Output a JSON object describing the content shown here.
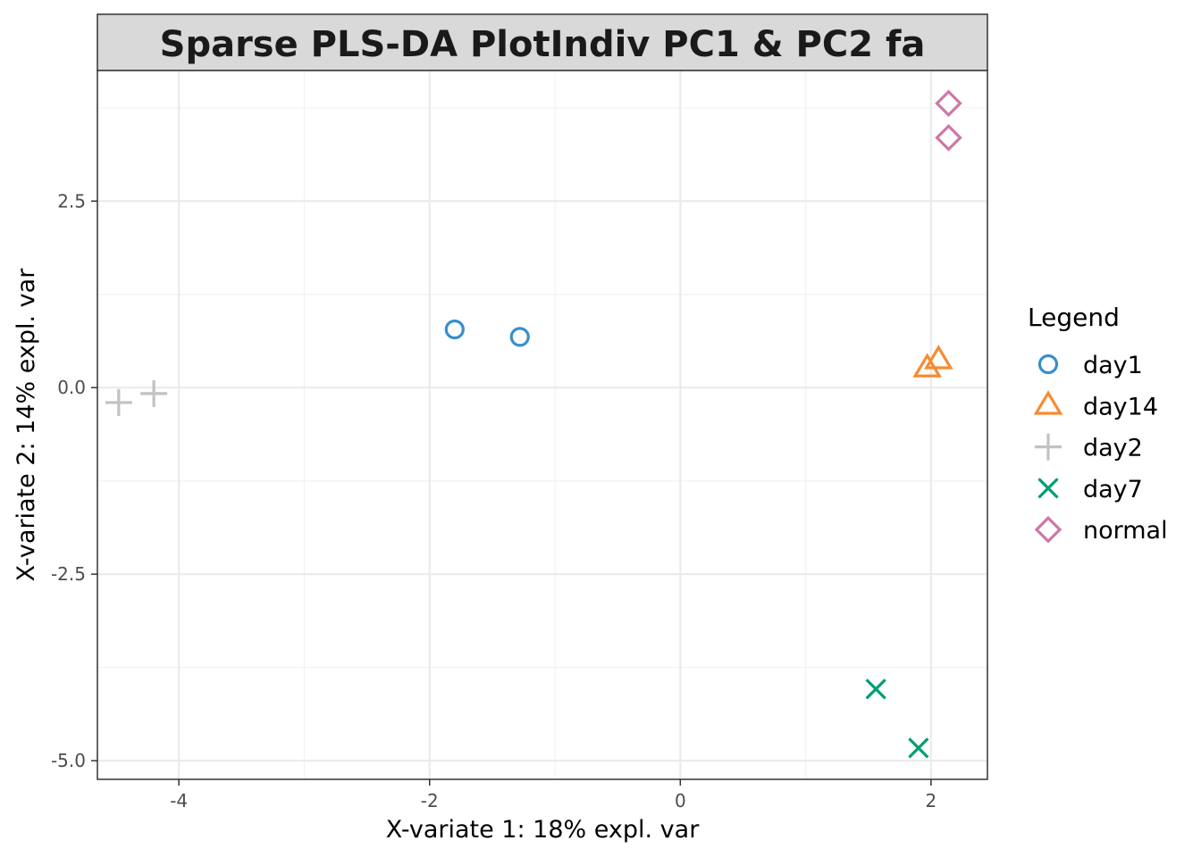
{
  "chart_data": {
    "type": "scatter",
    "title": "Sparse PLS-DA PlotIndiv PC1 & PC2 fa",
    "xlabel": "X-variate 1: 18% expl. var",
    "ylabel": "X-variate 2: 14% expl. var",
    "xlim": [
      -4.65,
      2.45
    ],
    "ylim": [
      -5.25,
      4.25
    ],
    "x_ticks": [
      -4,
      -2,
      0,
      2
    ],
    "x_tick_labels": [
      "-4",
      "-2",
      "0",
      "2"
    ],
    "y_ticks": [
      -5.0,
      -2.5,
      0.0,
      2.5
    ],
    "y_tick_labels": [
      "-5.0",
      "-2.5",
      "0.0",
      "2.5"
    ],
    "grid": true,
    "legend": {
      "title": "Legend",
      "position": "right"
    },
    "series": [
      {
        "name": "day1",
        "shape": "circle",
        "color": "#388ECC",
        "points": [
          {
            "x": -1.8,
            "y": 0.78
          },
          {
            "x": -1.28,
            "y": 0.68
          }
        ]
      },
      {
        "name": "day14",
        "shape": "triangle",
        "color": "#F68B33",
        "points": [
          {
            "x": 1.97,
            "y": 0.26
          },
          {
            "x": 2.06,
            "y": 0.37
          }
        ]
      },
      {
        "name": "day2",
        "shape": "plus",
        "color": "#C2C2C2",
        "points": [
          {
            "x": -4.48,
            "y": -0.2
          },
          {
            "x": -4.2,
            "y": -0.08
          }
        ]
      },
      {
        "name": "day7",
        "shape": "cross",
        "color": "#009E73",
        "points": [
          {
            "x": 1.56,
            "y": -4.04
          },
          {
            "x": 1.9,
            "y": -4.83
          }
        ]
      },
      {
        "name": "normal",
        "shape": "diamond",
        "color": "#CC79A7",
        "points": [
          {
            "x": 2.14,
            "y": 3.81
          },
          {
            "x": 2.14,
            "y": 3.35
          }
        ]
      }
    ]
  }
}
